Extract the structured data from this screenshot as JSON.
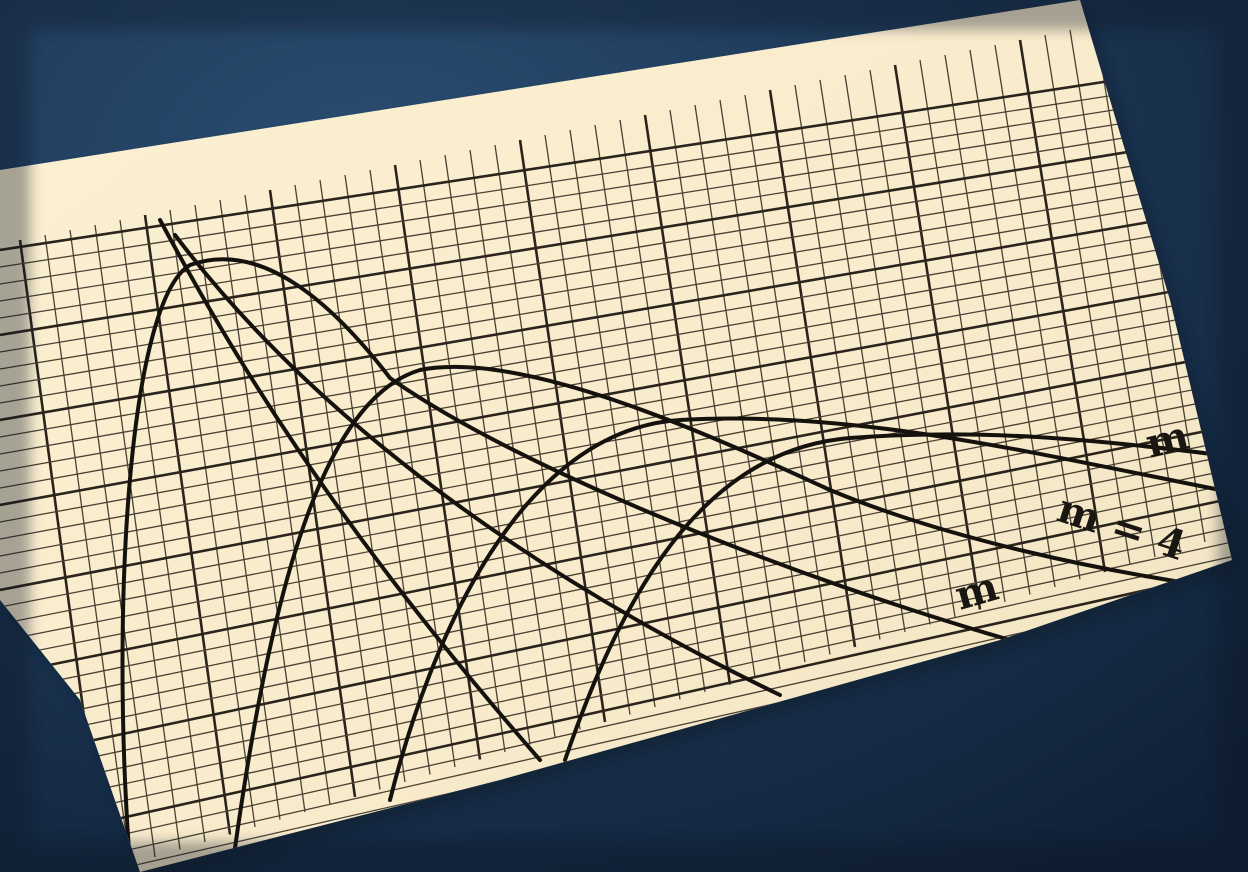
{
  "labels": [
    "m",
    "m = 4",
    "m"
  ]
}
